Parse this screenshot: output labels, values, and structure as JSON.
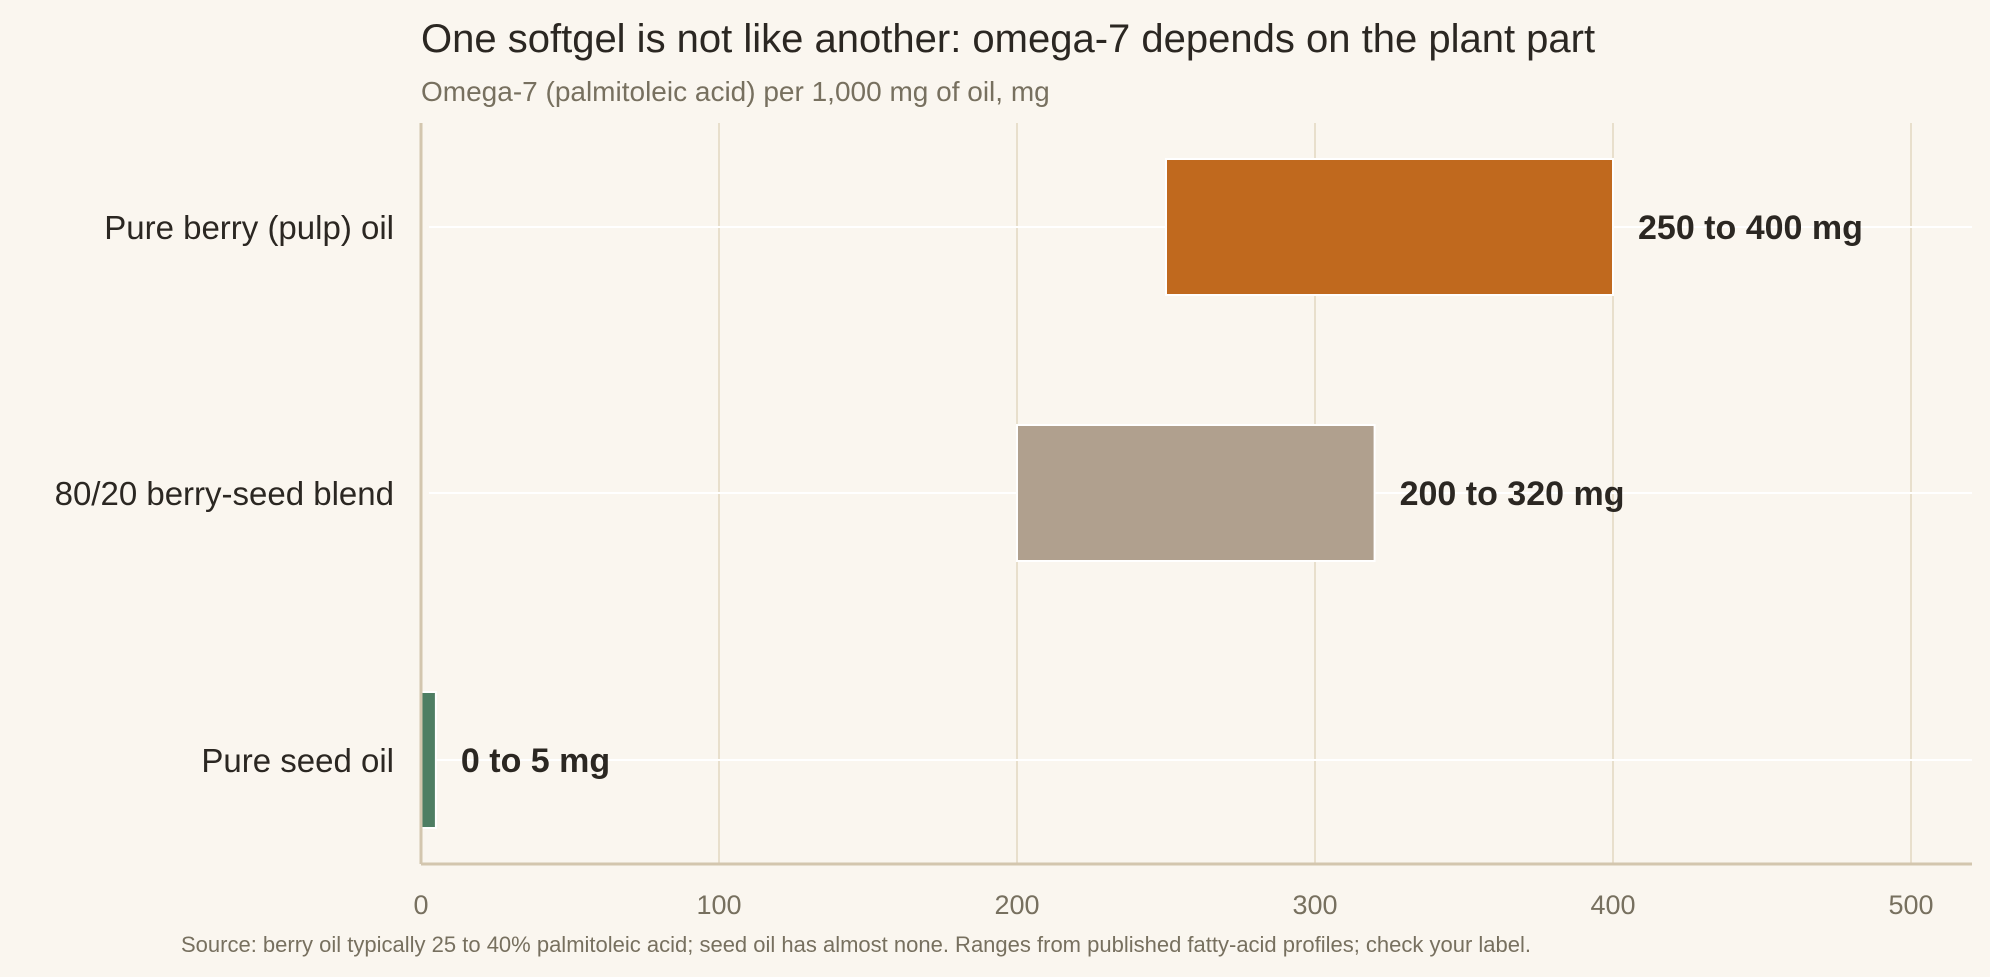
{
  "chart_data": {
    "type": "bar",
    "orientation": "horizontal-range",
    "title": "One softgel is not like another: omega-7 depends on the plant part",
    "subtitle": "Omega-7 (palmitoleic acid) per 1,000 mg of oil, mg",
    "xlabel": "",
    "ylabel": "",
    "xlim": [
      0,
      520
    ],
    "x_ticks": [
      0,
      100,
      200,
      300,
      400,
      500
    ],
    "grid": true,
    "categories": [
      "Pure berry (pulp) oil",
      "80/20 berry-seed blend",
      "Pure seed oil"
    ],
    "ranges": [
      {
        "category": "Pure berry (pulp) oil",
        "low": 250,
        "high": 400,
        "label": "250 to 400 mg",
        "color": "#c0691e"
      },
      {
        "category": "80/20 berry-seed blend",
        "low": 200,
        "high": 320,
        "label": "200 to 320 mg",
        "color": "#b0a08e"
      },
      {
        "category": "Pure seed oil",
        "low": 0,
        "high": 5,
        "label": "0 to 5 mg",
        "color": "#4e7e63"
      }
    ],
    "source": "Source: berry oil typically 25 to 40% palmitoleic acid; seed oil has almost none. Ranges from published fatty-acid profiles; check your label."
  },
  "colors": {
    "background": "#faf6ef",
    "grid": "#e8dfcc",
    "axis": "#d3c6ae",
    "text": "#2b2722",
    "muted": "#77705f"
  }
}
